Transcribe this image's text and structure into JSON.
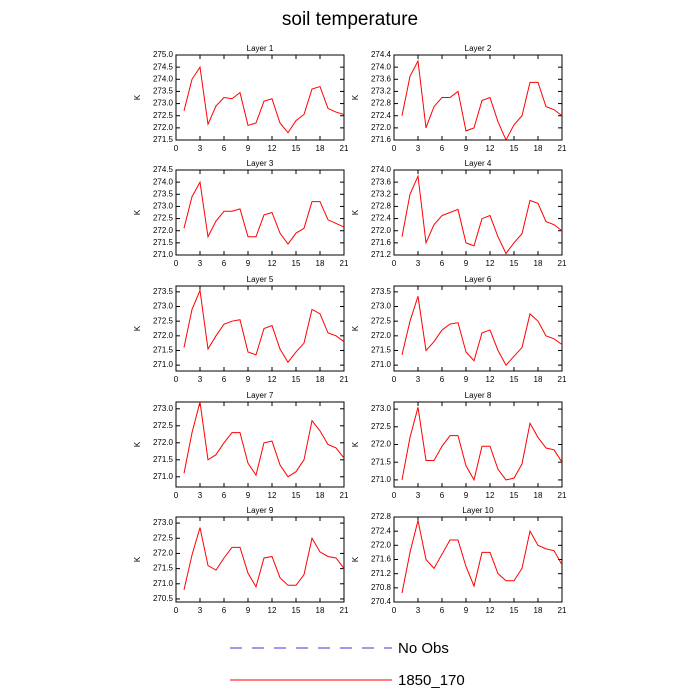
{
  "title": "soil temperature",
  "legend": [
    {
      "name": "No Obs",
      "color": "#3a3ad0",
      "dashed": true
    },
    {
      "name": "1850_170",
      "color": "#ff0000",
      "dashed": false
    }
  ],
  "chart_data": [
    {
      "type": "line",
      "title": "Layer 1",
      "y_label": "K",
      "color": "#ff0000",
      "x": [
        1,
        2,
        3,
        4,
        5,
        6,
        7,
        8,
        9,
        10,
        11,
        12,
        13,
        14,
        15,
        16,
        17,
        18,
        19,
        20,
        21
      ],
      "values": [
        272.7,
        274.0,
        274.5,
        272.15,
        272.9,
        273.25,
        273.2,
        273.45,
        272.1,
        272.2,
        273.1,
        273.2,
        272.2,
        271.8,
        272.3,
        272.55,
        273.6,
        273.7,
        272.8,
        272.65,
        272.55
      ],
      "xlim": [
        0,
        21
      ],
      "xticks": [
        0,
        3,
        6,
        9,
        12,
        15,
        18,
        21
      ],
      "ylim": [
        271.5,
        275
      ],
      "yticks": [
        271.5,
        {
          "value": 272,
          "label": "272.0"
        },
        272.5,
        {
          "value": 273,
          "label": "273.0"
        },
        273.5,
        {
          "value": 274,
          "label": "274.0"
        },
        274.5,
        {
          "value": 275,
          "label": "275.0"
        }
      ]
    },
    {
      "type": "line",
      "title": "Layer 2",
      "y_label": "K",
      "color": "#ff0000",
      "x": [
        1,
        2,
        3,
        4,
        5,
        6,
        7,
        8,
        9,
        10,
        11,
        12,
        13,
        14,
        15,
        16,
        17,
        18,
        19,
        20,
        21
      ],
      "values": [
        272.4,
        273.7,
        274.2,
        272.0,
        272.7,
        273.0,
        273.0,
        273.2,
        271.9,
        272.0,
        272.9,
        273.0,
        272.2,
        271.6,
        272.1,
        272.4,
        273.5,
        273.5,
        272.7,
        272.6,
        272.4
      ],
      "xlim": [
        0,
        21
      ],
      "xticks": [
        0,
        3,
        6,
        9,
        12,
        15,
        18,
        21
      ],
      "ylim": [
        271.6,
        274.4
      ],
      "yticks": [
        271.6,
        {
          "value": 272,
          "label": "272.0"
        },
        272.4,
        272.8,
        273.2,
        273.6,
        {
          "value": 274,
          "label": "274.0"
        },
        274.4
      ]
    },
    {
      "type": "line",
      "title": "Layer 3",
      "y_label": "K",
      "color": "#ff0000",
      "x": [
        1,
        2,
        3,
        4,
        5,
        6,
        7,
        8,
        9,
        10,
        11,
        12,
        13,
        14,
        15,
        16,
        17,
        18,
        19,
        20,
        21
      ],
      "values": [
        272.1,
        273.4,
        274.0,
        271.75,
        272.4,
        272.8,
        272.8,
        272.9,
        271.75,
        271.75,
        272.65,
        272.75,
        271.9,
        271.45,
        271.9,
        272.1,
        273.2,
        273.2,
        272.45,
        272.3,
        272.15
      ],
      "xlim": [
        0,
        21
      ],
      "xticks": [
        0,
        3,
        6,
        9,
        12,
        15,
        18,
        21
      ],
      "ylim": [
        271,
        274.5
      ],
      "yticks": [
        {
          "value": 271,
          "label": "271.0"
        },
        271.5,
        {
          "value": 272,
          "label": "272.0"
        },
        272.5,
        {
          "value": 273,
          "label": "273.0"
        },
        273.5,
        {
          "value": 274,
          "label": "274.0"
        },
        274.5
      ]
    },
    {
      "type": "line",
      "title": "Layer 4",
      "y_label": "K",
      "color": "#ff0000",
      "x": [
        1,
        2,
        3,
        4,
        5,
        6,
        7,
        8,
        9,
        10,
        11,
        12,
        13,
        14,
        15,
        16,
        17,
        18,
        19,
        20,
        21
      ],
      "values": [
        271.8,
        273.2,
        273.8,
        271.6,
        272.2,
        272.5,
        272.6,
        272.7,
        271.6,
        271.5,
        272.4,
        272.5,
        271.8,
        271.25,
        271.6,
        271.9,
        273.0,
        272.9,
        272.3,
        272.2,
        272.0
      ],
      "xlim": [
        0,
        21
      ],
      "xticks": [
        0,
        3,
        6,
        9,
        12,
        15,
        18,
        21
      ],
      "ylim": [
        271.2,
        274
      ],
      "yticks": [
        271.2,
        271.6,
        {
          "value": 272,
          "label": "272.0"
        },
        272.4,
        272.8,
        273.2,
        273.6,
        {
          "value": 274,
          "label": "274.0"
        }
      ]
    },
    {
      "type": "line",
      "title": "Layer 5",
      "y_label": "K",
      "color": "#ff0000",
      "x": [
        1,
        2,
        3,
        4,
        5,
        6,
        7,
        8,
        9,
        10,
        11,
        12,
        13,
        14,
        15,
        16,
        17,
        18,
        19,
        20,
        21
      ],
      "values": [
        271.6,
        272.9,
        273.55,
        271.55,
        272.0,
        272.4,
        272.5,
        272.55,
        271.45,
        271.35,
        272.25,
        272.35,
        271.55,
        271.1,
        271.45,
        271.75,
        272.9,
        272.75,
        272.1,
        272.0,
        271.8
      ],
      "xlim": [
        0,
        21
      ],
      "xticks": [
        0,
        3,
        6,
        9,
        12,
        15,
        18,
        21
      ],
      "ylim": [
        270.8,
        273.7
      ],
      "yticks": [
        {
          "value": 271,
          "label": "271.0"
        },
        271.5,
        {
          "value": 272,
          "label": "272.0"
        },
        272.5,
        {
          "value": 273,
          "label": "273.0"
        },
        273.5
      ]
    },
    {
      "type": "line",
      "title": "Layer 6",
      "y_label": "K",
      "color": "#ff0000",
      "x": [
        1,
        2,
        3,
        4,
        5,
        6,
        7,
        8,
        9,
        10,
        11,
        12,
        13,
        14,
        15,
        16,
        17,
        18,
        19,
        20,
        21
      ],
      "values": [
        271.35,
        272.5,
        273.35,
        271.5,
        271.8,
        272.2,
        272.4,
        272.45,
        271.45,
        271.15,
        272.1,
        272.2,
        271.5,
        271.0,
        271.3,
        271.6,
        272.75,
        272.5,
        272.0,
        271.9,
        271.7
      ],
      "xlim": [
        0,
        21
      ],
      "xticks": [
        0,
        3,
        6,
        9,
        12,
        15,
        18,
        21
      ],
      "ylim": [
        270.8,
        273.7
      ],
      "yticks": [
        {
          "value": 271,
          "label": "271.0"
        },
        271.5,
        {
          "value": 272,
          "label": "272.0"
        },
        272.5,
        {
          "value": 273,
          "label": "273.0"
        },
        273.5
      ]
    },
    {
      "type": "line",
      "title": "Layer 7",
      "y_label": "K",
      "color": "#ff0000",
      "x": [
        1,
        2,
        3,
        4,
        5,
        6,
        7,
        8,
        9,
        10,
        11,
        12,
        13,
        14,
        15,
        16,
        17,
        18,
        19,
        20,
        21
      ],
      "values": [
        271.1,
        272.3,
        273.2,
        271.5,
        271.65,
        272.0,
        272.3,
        272.3,
        271.4,
        271.05,
        272.0,
        272.05,
        271.35,
        271.0,
        271.15,
        271.5,
        272.65,
        272.35,
        271.95,
        271.85,
        271.55
      ],
      "xlim": [
        0,
        21
      ],
      "xticks": [
        0,
        3,
        6,
        9,
        12,
        15,
        18,
        21
      ],
      "ylim": [
        270.7,
        273.2
      ],
      "yticks": [
        {
          "value": 271,
          "label": "271.0"
        },
        271.5,
        {
          "value": 272,
          "label": "272.0"
        },
        272.5,
        {
          "value": 273,
          "label": "273.0"
        }
      ]
    },
    {
      "type": "line",
      "title": "Layer 8",
      "y_label": "K",
      "color": "#ff0000",
      "x": [
        1,
        2,
        3,
        4,
        5,
        6,
        7,
        8,
        9,
        10,
        11,
        12,
        13,
        14,
        15,
        16,
        17,
        18,
        19,
        20,
        21
      ],
      "values": [
        271.0,
        272.2,
        273.05,
        271.55,
        271.55,
        271.95,
        272.25,
        272.25,
        271.4,
        271.0,
        271.95,
        271.95,
        271.3,
        271.0,
        271.05,
        271.45,
        272.6,
        272.2,
        271.9,
        271.85,
        271.5
      ],
      "xlim": [
        0,
        21
      ],
      "xticks": [
        0,
        3,
        6,
        9,
        12,
        15,
        18,
        21
      ],
      "ylim": [
        270.8,
        273.2
      ],
      "yticks": [
        {
          "value": 271,
          "label": "271.0"
        },
        271.5,
        {
          "value": 272,
          "label": "272.0"
        },
        272.5,
        {
          "value": 273,
          "label": "273.0"
        }
      ]
    },
    {
      "type": "line",
      "title": "Layer 9",
      "y_label": "K",
      "color": "#ff0000",
      "x": [
        1,
        2,
        3,
        4,
        5,
        6,
        7,
        8,
        9,
        10,
        11,
        12,
        13,
        14,
        15,
        16,
        17,
        18,
        19,
        20,
        21
      ],
      "values": [
        270.8,
        271.95,
        272.85,
        271.6,
        271.45,
        271.85,
        272.2,
        272.2,
        271.35,
        270.9,
        271.85,
        271.9,
        271.2,
        270.95,
        270.95,
        271.3,
        272.5,
        272.05,
        271.9,
        271.85,
        271.5
      ],
      "xlim": [
        0,
        21
      ],
      "xticks": [
        0,
        3,
        6,
        9,
        12,
        15,
        18,
        21
      ],
      "ylim": [
        270.4,
        273.2
      ],
      "yticks": [
        270.5,
        {
          "value": 271,
          "label": "271.0"
        },
        271.5,
        {
          "value": 272,
          "label": "272.0"
        },
        272.5,
        {
          "value": 273,
          "label": "273.0"
        }
      ]
    },
    {
      "type": "line",
      "title": "Layer 10",
      "y_label": "K",
      "color": "#ff0000",
      "x": [
        1,
        2,
        3,
        4,
        5,
        6,
        7,
        8,
        9,
        10,
        11,
        12,
        13,
        14,
        15,
        16,
        17,
        18,
        19,
        20,
        21
      ],
      "values": [
        270.65,
        271.8,
        272.7,
        271.6,
        271.35,
        271.75,
        272.15,
        272.15,
        271.4,
        270.85,
        271.8,
        271.8,
        271.2,
        271.0,
        271.0,
        271.35,
        272.4,
        272.0,
        271.9,
        271.85,
        271.45
      ],
      "xlim": [
        0,
        21
      ],
      "xticks": [
        0,
        3,
        6,
        9,
        12,
        15,
        18,
        21
      ],
      "ylim": [
        270.4,
        272.8
      ],
      "yticks": [
        270.4,
        270.8,
        271.2,
        271.6,
        {
          "value": 272,
          "label": "272.0"
        },
        272.4,
        272.8
      ]
    }
  ]
}
